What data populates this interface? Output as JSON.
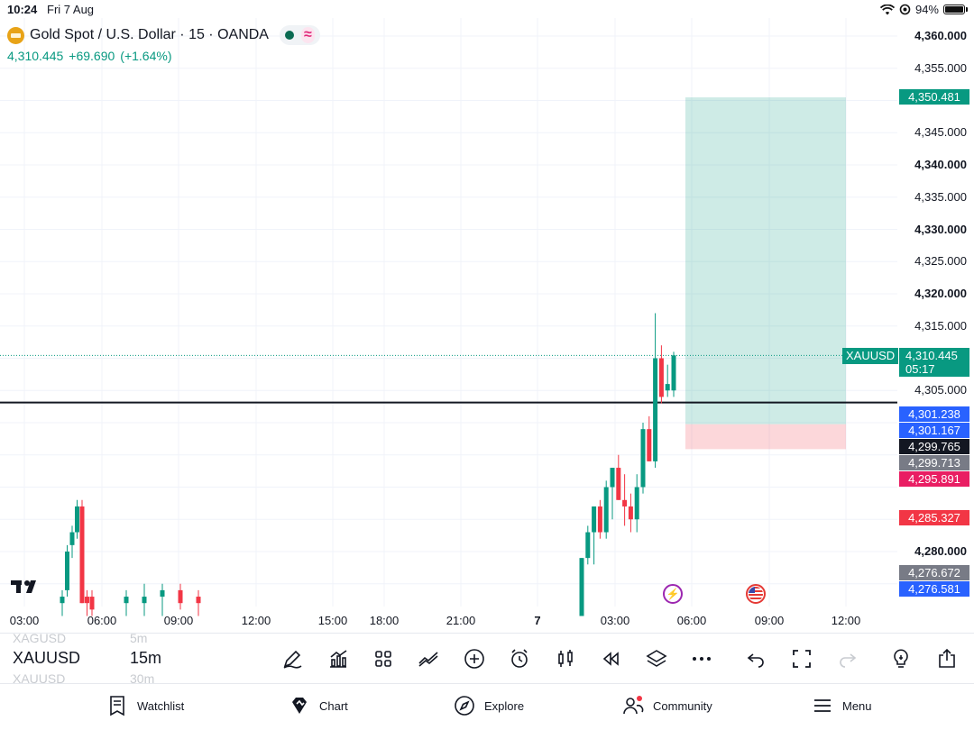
{
  "status_bar": {
    "time": "10:24",
    "date": "Fri 7 Aug",
    "battery": "94%"
  },
  "header": {
    "title": "Gold Spot / U.S. Dollar · 15 · OANDA",
    "price": "4,310.445",
    "change": "+69.690",
    "change_pct": "(+1.64%)",
    "change_color": "#089981"
  },
  "price_axis": {
    "ticks": [
      {
        "label": "4,360.000",
        "value": 4360,
        "bold": true
      },
      {
        "label": "4,355.000",
        "value": 4355,
        "bold": false
      },
      {
        "label": "4,345.000",
        "value": 4345,
        "bold": false
      },
      {
        "label": "4,340.000",
        "value": 4340,
        "bold": true
      },
      {
        "label": "4,335.000",
        "value": 4335,
        "bold": false
      },
      {
        "label": "4,330.000",
        "value": 4330,
        "bold": true
      },
      {
        "label": "4,325.000",
        "value": 4325,
        "bold": false
      },
      {
        "label": "4,320.000",
        "value": 4320,
        "bold": true
      },
      {
        "label": "4,315.000",
        "value": 4315,
        "bold": false
      },
      {
        "label": "4,305.000",
        "value": 4305,
        "bold": false
      },
      {
        "label": "4,280.000",
        "value": 4280,
        "bold": true
      }
    ],
    "labels": [
      {
        "text": "4,350.481",
        "value": 4350.481,
        "color": "#089981"
      },
      {
        "text": "4,301.238",
        "value": 4301.238,
        "color": "#2962ff"
      },
      {
        "text": "4,301.167",
        "value": 4301.167,
        "color": "#2962ff"
      },
      {
        "text": "4,299.765",
        "value": 4299.765,
        "color": "#131722"
      },
      {
        "text": "4,299.713",
        "value": 4299.713,
        "color": "#787b86"
      },
      {
        "text": "4,295.891",
        "value": 4295.891,
        "color": "#e91e63"
      },
      {
        "text": "4,285.327",
        "value": 4285.327,
        "color": "#f23645"
      },
      {
        "text": "4,276.672",
        "value": 4276.672,
        "color": "#787b86"
      },
      {
        "text": "4,276.581",
        "value": 4276.581,
        "color": "#2962ff"
      }
    ],
    "current": {
      "symbol": "XAUUSD",
      "price": "4,310.445",
      "countdown": "05:17",
      "value": 4310.445,
      "color": "#089981"
    }
  },
  "time_axis": [
    {
      "label": "03:00",
      "bold": false
    },
    {
      "label": "06:00",
      "bold": false
    },
    {
      "label": "09:00",
      "bold": false
    },
    {
      "label": "12:00",
      "bold": false
    },
    {
      "label": "15:00",
      "bold": false
    },
    {
      "label": "18:00",
      "bold": false
    },
    {
      "label": "21:00",
      "bold": false
    },
    {
      "label": "7",
      "bold": true
    },
    {
      "label": "03:00",
      "bold": false
    },
    {
      "label": "06:00",
      "bold": false
    },
    {
      "label": "09:00",
      "bold": false
    },
    {
      "label": "12:00",
      "bold": false
    }
  ],
  "chart_data": {
    "type": "candlestick",
    "symbol": "XAUUSD",
    "timeframe": "15",
    "ylim": [
      4270,
      4362
    ],
    "horizontal_line": 4299.765,
    "position": {
      "entry": 4299.765,
      "target": 4350.481,
      "stop": 4295.891
    },
    "candles_day1": [
      {
        "o": 4272,
        "h": 4274,
        "l": 4270,
        "c": 4273,
        "color": "green"
      },
      {
        "o": 4274,
        "h": 4281,
        "l": 4273,
        "c": 4280,
        "color": "green"
      },
      {
        "o": 4281,
        "h": 4284,
        "l": 4279,
        "c": 4283,
        "color": "green"
      },
      {
        "o": 4283,
        "h": 4288,
        "l": 4282,
        "c": 4287,
        "color": "green"
      },
      {
        "o": 4287,
        "h": 4288,
        "l": 4272,
        "c": 4272,
        "color": "red"
      },
      {
        "o": 4273,
        "h": 4274,
        "l": 4270,
        "c": 4272,
        "color": "red"
      },
      {
        "o": 4273,
        "h": 4274,
        "l": 4270,
        "c": 4271,
        "color": "red"
      },
      {
        "o": 4272,
        "h": 4274,
        "l": 4270,
        "c": 4273,
        "color": "green"
      },
      {
        "o": 4272,
        "h": 4275,
        "l": 4270,
        "c": 4273,
        "color": "green"
      },
      {
        "o": 4273,
        "h": 4275,
        "l": 4270,
        "c": 4274,
        "color": "green"
      },
      {
        "o": 4274,
        "h": 4275,
        "l": 4271,
        "c": 4272,
        "color": "red"
      },
      {
        "o": 4273,
        "h": 4274,
        "l": 4270,
        "c": 4272,
        "color": "red"
      }
    ],
    "candles_day2": [
      {
        "o": 4270,
        "h": 4279,
        "l": 4270,
        "c": 4279,
        "color": "green"
      },
      {
        "o": 4279,
        "h": 4284,
        "l": 4278,
        "c": 4283,
        "color": "green"
      },
      {
        "o": 4283,
        "h": 4287,
        "l": 4278,
        "c": 4287,
        "color": "green"
      },
      {
        "o": 4287,
        "h": 4288,
        "l": 4282,
        "c": 4283,
        "color": "red"
      },
      {
        "o": 4283,
        "h": 4291,
        "l": 4282,
        "c": 4290,
        "color": "green"
      },
      {
        "o": 4290,
        "h": 4293,
        "l": 4285,
        "c": 4293,
        "color": "green"
      },
      {
        "o": 4293,
        "h": 4295,
        "l": 4288,
        "c": 4288,
        "color": "red"
      },
      {
        "o": 4288,
        "h": 4292,
        "l": 4284,
        "c": 4287,
        "color": "red"
      },
      {
        "o": 4287,
        "h": 4289,
        "l": 4283,
        "c": 4285,
        "color": "red"
      },
      {
        "o": 4285,
        "h": 4292,
        "l": 4283,
        "c": 4290,
        "color": "green"
      },
      {
        "o": 4290,
        "h": 4300,
        "l": 4289,
        "c": 4299,
        "color": "green"
      },
      {
        "o": 4299,
        "h": 4301,
        "l": 4294,
        "c": 4294,
        "color": "red"
      },
      {
        "o": 4294,
        "h": 4317,
        "l": 4293,
        "c": 4310,
        "color": "green"
      },
      {
        "o": 4310,
        "h": 4312,
        "l": 4303,
        "c": 4304,
        "color": "red"
      },
      {
        "o": 4305,
        "h": 4309,
        "l": 4304,
        "c": 4306,
        "color": "green"
      },
      {
        "o": 4305,
        "h": 4311,
        "l": 4304,
        "c": 4310.445,
        "color": "green"
      }
    ]
  },
  "toolbar": {
    "symbol": "XAUUSD",
    "symbol_prev": "XAGUSD",
    "symbol_next": "XAUUSD",
    "timeframe": "15m",
    "timeframe_prev": "5m",
    "timeframe_next": "30m"
  },
  "bottom_nav": [
    {
      "label": "Watchlist"
    },
    {
      "label": "Chart"
    },
    {
      "label": "Explore"
    },
    {
      "label": "Community"
    },
    {
      "label": "Menu"
    }
  ]
}
